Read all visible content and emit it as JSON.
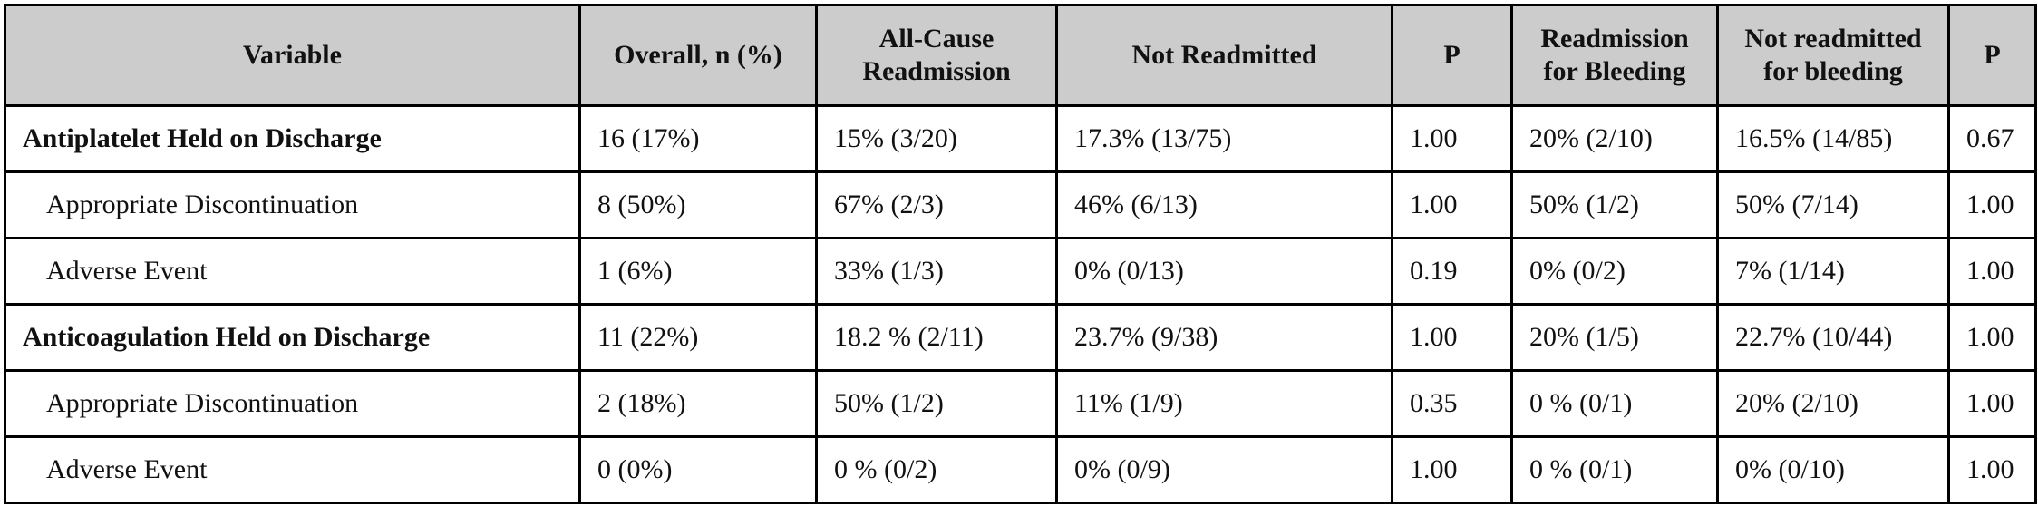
{
  "table": {
    "headers": [
      "Variable",
      "Overall, n (%)",
      "All-Cause Readmission",
      "Not Readmitted",
      "P",
      "Readmission for Bleeding",
      "Not readmitted for bleeding",
      "P"
    ],
    "rows": [
      [
        "Antiplatelet Held on Discharge",
        "16 (17%)",
        "15% (3/20)",
        "17.3% (13/75)",
        "1.00",
        "20% (2/10)",
        "16.5% (14/85)",
        "0.67"
      ],
      [
        "Appropriate Discontinuation",
        "8 (50%)",
        "67% (2/3)",
        "46% (6/13)",
        "1.00",
        "50% (1/2)",
        "50% (7/14)",
        "1.00"
      ],
      [
        "Adverse Event",
        "1 (6%)",
        "33% (1/3)",
        "0% (0/13)",
        "0.19",
        "0% (0/2)",
        "7% (1/14)",
        "1.00"
      ],
      [
        "Anticoagulation Held on Discharge",
        "11 (22%)",
        "18.2 % (2/11)",
        "23.7% (9/38)",
        "1.00",
        "20% (1/5)",
        "22.7% (10/44)",
        "1.00"
      ],
      [
        "Appropriate Discontinuation",
        "2 (18%)",
        "50% (1/2)",
        "11% (1/9)",
        "0.35",
        "0 % (0/1)",
        "20% (2/10)",
        "1.00"
      ],
      [
        "Adverse Event",
        "0 (0%)",
        "0 % (0/2)",
        "0% (0/9)",
        "1.00",
        "0 % (0/1)",
        "0% (0/10)",
        "1.00"
      ]
    ]
  }
}
